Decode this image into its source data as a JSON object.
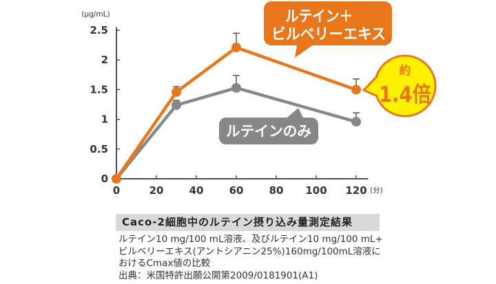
{
  "chart_data": {
    "type": "line",
    "title": "Caco-2細胞中のルテイン摂り込み量測定結果",
    "xlabel": "(分)",
    "ylabel": "(μg/mL)",
    "x": [
      0,
      30,
      60,
      120
    ],
    "x_ticks": [
      0,
      20,
      40,
      60,
      80,
      100,
      120
    ],
    "y_ticks": [
      0,
      0.5,
      1,
      1.5,
      2,
      2.5
    ],
    "xlim": [
      0,
      126
    ],
    "ylim": [
      0,
      2.55
    ],
    "grid": false,
    "series": [
      {
        "label_lines": [
          "ルテイン＋",
          "ビルベリーエキス"
        ],
        "color": "#E8761B",
        "values": [
          0,
          1.46,
          2.21,
          1.5
        ],
        "error_upper": [
          0,
          0.09,
          0.24,
          0.18
        ]
      },
      {
        "label_lines": [
          "ルテインのみ"
        ],
        "color": "#878787",
        "values": [
          0,
          1.24,
          1.53,
          0.96
        ],
        "error_upper": [
          0,
          0.08,
          0.21,
          0.15
        ]
      }
    ],
    "annotation": {
      "prefix": "約",
      "text": "1.4倍",
      "fill": "#FFF100",
      "stroke": "#E8761B"
    }
  },
  "caption": {
    "lines": [
      "ルテイン10 mg/100 mL溶液、及びルテイン10 mg/100 mL+",
      "ビルベリーエキス(アントシアニン25%)160mg/100mL溶液に",
      "おけるCmax値の比較",
      "出典：米国特許出願公開第2009/0181901(A1)"
    ]
  }
}
